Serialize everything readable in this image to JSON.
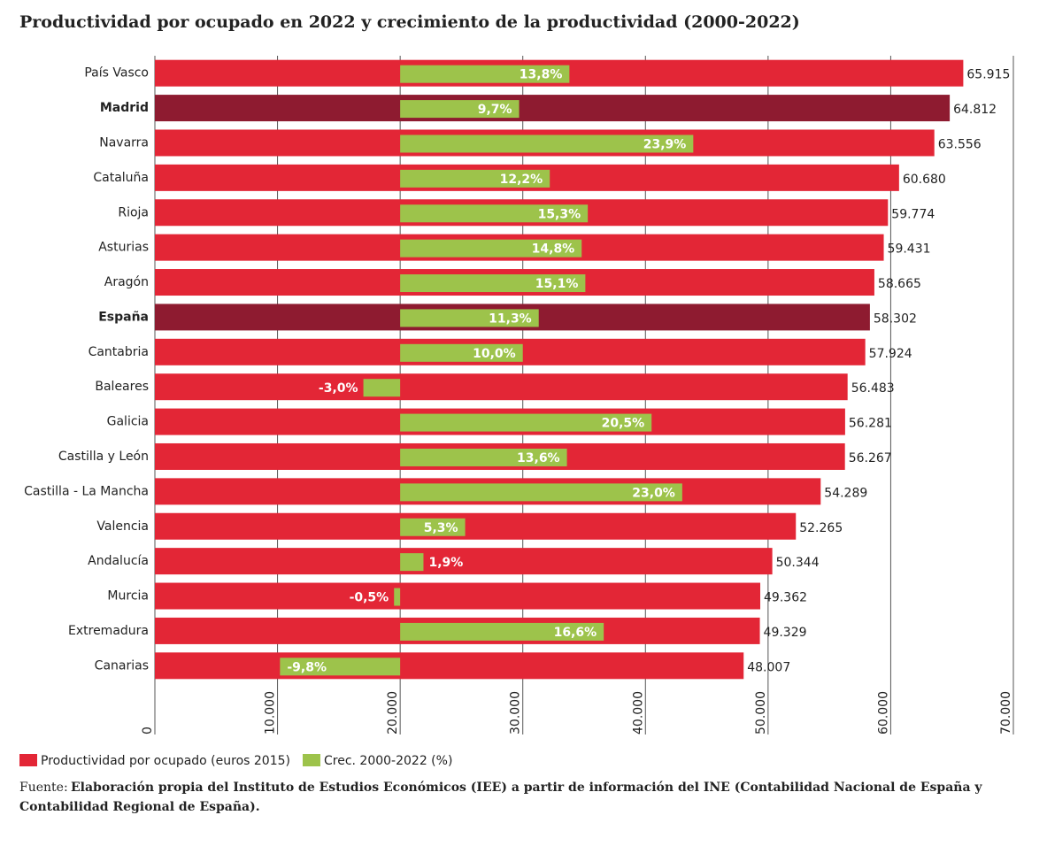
{
  "chart_data": {
    "type": "bar",
    "orientation": "horizontal",
    "title": "Productividad por ocupado en 2022 y crecimiento de la productividad (2000-2022)",
    "categories": [
      "País Vasco",
      "Madrid",
      "Navarra",
      "Cataluña",
      "Rioja",
      "Asturias",
      "Aragón",
      "España",
      "Cantabria",
      "Baleares",
      "Galicia",
      "Castilla y León",
      "Castilla - La Mancha",
      "Valencia",
      "Andalucía",
      "Murcia",
      "Extremadura",
      "Canarias"
    ],
    "bold_categories": [
      false,
      true,
      false,
      false,
      false,
      false,
      false,
      true,
      false,
      false,
      false,
      false,
      false,
      false,
      false,
      false,
      false,
      false
    ],
    "series": [
      {
        "name": "Productividad por ocupado (euros 2015)",
        "color": "#e32636",
        "colors": [
          "#e32636",
          "#8e1b30",
          "#e32636",
          "#e32636",
          "#e32636",
          "#e32636",
          "#e32636",
          "#8e1b30",
          "#e32636",
          "#e32636",
          "#e32636",
          "#e32636",
          "#e32636",
          "#e32636",
          "#e32636",
          "#e32636",
          "#e32636",
          "#e32636"
        ],
        "values": [
          65915,
          64812,
          63556,
          60680,
          59774,
          59431,
          58665,
          58302,
          57924,
          56483,
          56281,
          56267,
          54289,
          52265,
          50344,
          49362,
          49329,
          48007
        ],
        "value_labels": [
          "65.915",
          "64.812",
          "63.556",
          "60.680",
          "59.774",
          "59.431",
          "58.665",
          "58.302",
          "57.924",
          "56.483",
          "56.281",
          "56.267",
          "54.289",
          "52.265",
          "50.344",
          "49.362",
          "49.329",
          "48.007"
        ]
      },
      {
        "name": "Crec. 2000-2022 (%)",
        "color": "#9dc34b",
        "axis": "x2",
        "values": [
          13.8,
          9.7,
          23.9,
          12.2,
          15.3,
          14.8,
          15.1,
          11.3,
          10.0,
          -3.0,
          20.5,
          13.6,
          23.0,
          5.3,
          1.9,
          -0.5,
          16.6,
          -9.8
        ],
        "value_labels": [
          "13,8%",
          "9,7%",
          "23,9%",
          "12,2%",
          "15,3%",
          "14,8%",
          "15,1%",
          "11,3%",
          "10,0%",
          "-3,0%",
          "20,5%",
          "13,6%",
          "23,0%",
          "5,3%",
          "1,9%",
          "-0,5%",
          "16,6%",
          "-9,8%"
        ]
      }
    ],
    "xlim": [
      0,
      70000
    ],
    "x2lim": [
      -20,
      50
    ],
    "xticks": [
      0,
      {
        "value": 10000,
        "label": "10.000"
      },
      {
        "value": 20000,
        "label": "20.000"
      },
      {
        "value": 30000,
        "label": "30.000"
      },
      {
        "value": 40000,
        "label": "40.000"
      },
      {
        "value": 50000,
        "label": "50.000"
      },
      {
        "value": 60000,
        "label": "60.000"
      },
      {
        "value": 70000,
        "label": "70.000"
      }
    ],
    "grid": true,
    "legend": "bottom-left",
    "source": {
      "label": "Fuente:",
      "text": "Elaboración propia del Instituto de Estudios Económicos (IEE) a partir de información del INE (Contabilidad Nacional de España y",
      "text2": "Contabilidad Regional de España)."
    }
  }
}
